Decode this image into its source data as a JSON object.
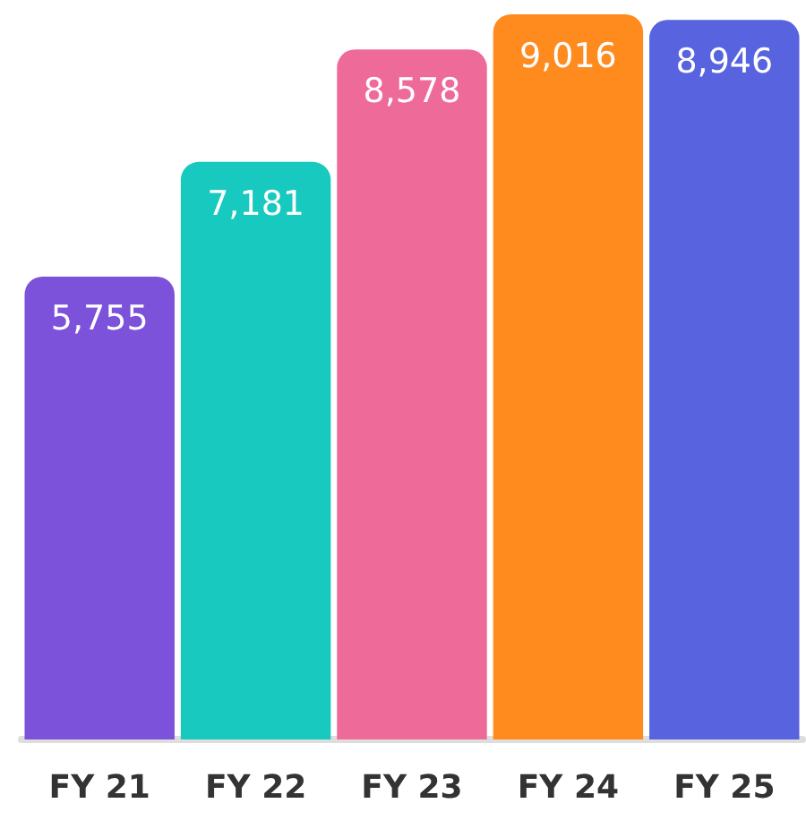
{
  "chart_data": {
    "type": "bar",
    "categories": [
      "FY 21",
      "FY 22",
      "FY 23",
      "FY 24",
      "FY 25"
    ],
    "values": [
      5755,
      7181,
      8578,
      9016,
      8946
    ],
    "colors": [
      "#7b52d9",
      "#17c9be",
      "#ee6a98",
      "#ff8a1e",
      "#5763df"
    ],
    "value_labels": [
      "5,755",
      "7,181",
      "8,578",
      "9,016",
      "8,946"
    ]
  }
}
